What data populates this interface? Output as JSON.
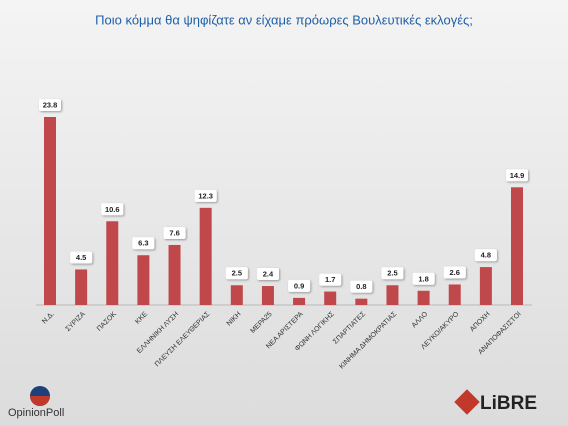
{
  "chart_data": {
    "type": "bar",
    "title": "Ποιο κόμμα θα ψηφίζατε αν είχαμε πρόωρες Βουλευτικές εκλογές;",
    "categories": [
      "Ν.Δ.",
      "ΣΥΡΙΖΑ",
      "ΠΑΣΟΚ",
      "ΚΚΕ",
      "ΕΛΛΗΝΙΚΗ ΛΥΣΗ",
      "ΠΛΕΥΣΗ ΕΛΕΥΘΕΡΙΑΣ",
      "ΝΙΚΗ",
      "ΜΕΡΑ25",
      "ΝΕΑ ΑΡΙΣΤΕΡΑ",
      "ΦΩΝΗ ΛΟΓΙΚΗΣ",
      "ΣΠΑΡΤΙΑΤΕΣ",
      "ΚΙΝΗΜΑ ΔΗΜΟΚΡΑΤΙΑΣ",
      "ΑΛΛΟ",
      "ΛΕΥΚΟ/ΑΚΥΡΟ",
      "ΑΠΟΧΗ",
      "ΑΝΑΠΟΦΑΣΙΣΤΟΙ"
    ],
    "values": [
      23.8,
      4.5,
      10.6,
      6.3,
      7.6,
      12.3,
      2.5,
      2.4,
      0.9,
      1.7,
      0.8,
      2.5,
      1.8,
      2.6,
      4.8,
      14.9
    ],
    "color": "#c0484a"
  },
  "logos": {
    "left": "OpinionPoll",
    "right": "LiBRE"
  }
}
